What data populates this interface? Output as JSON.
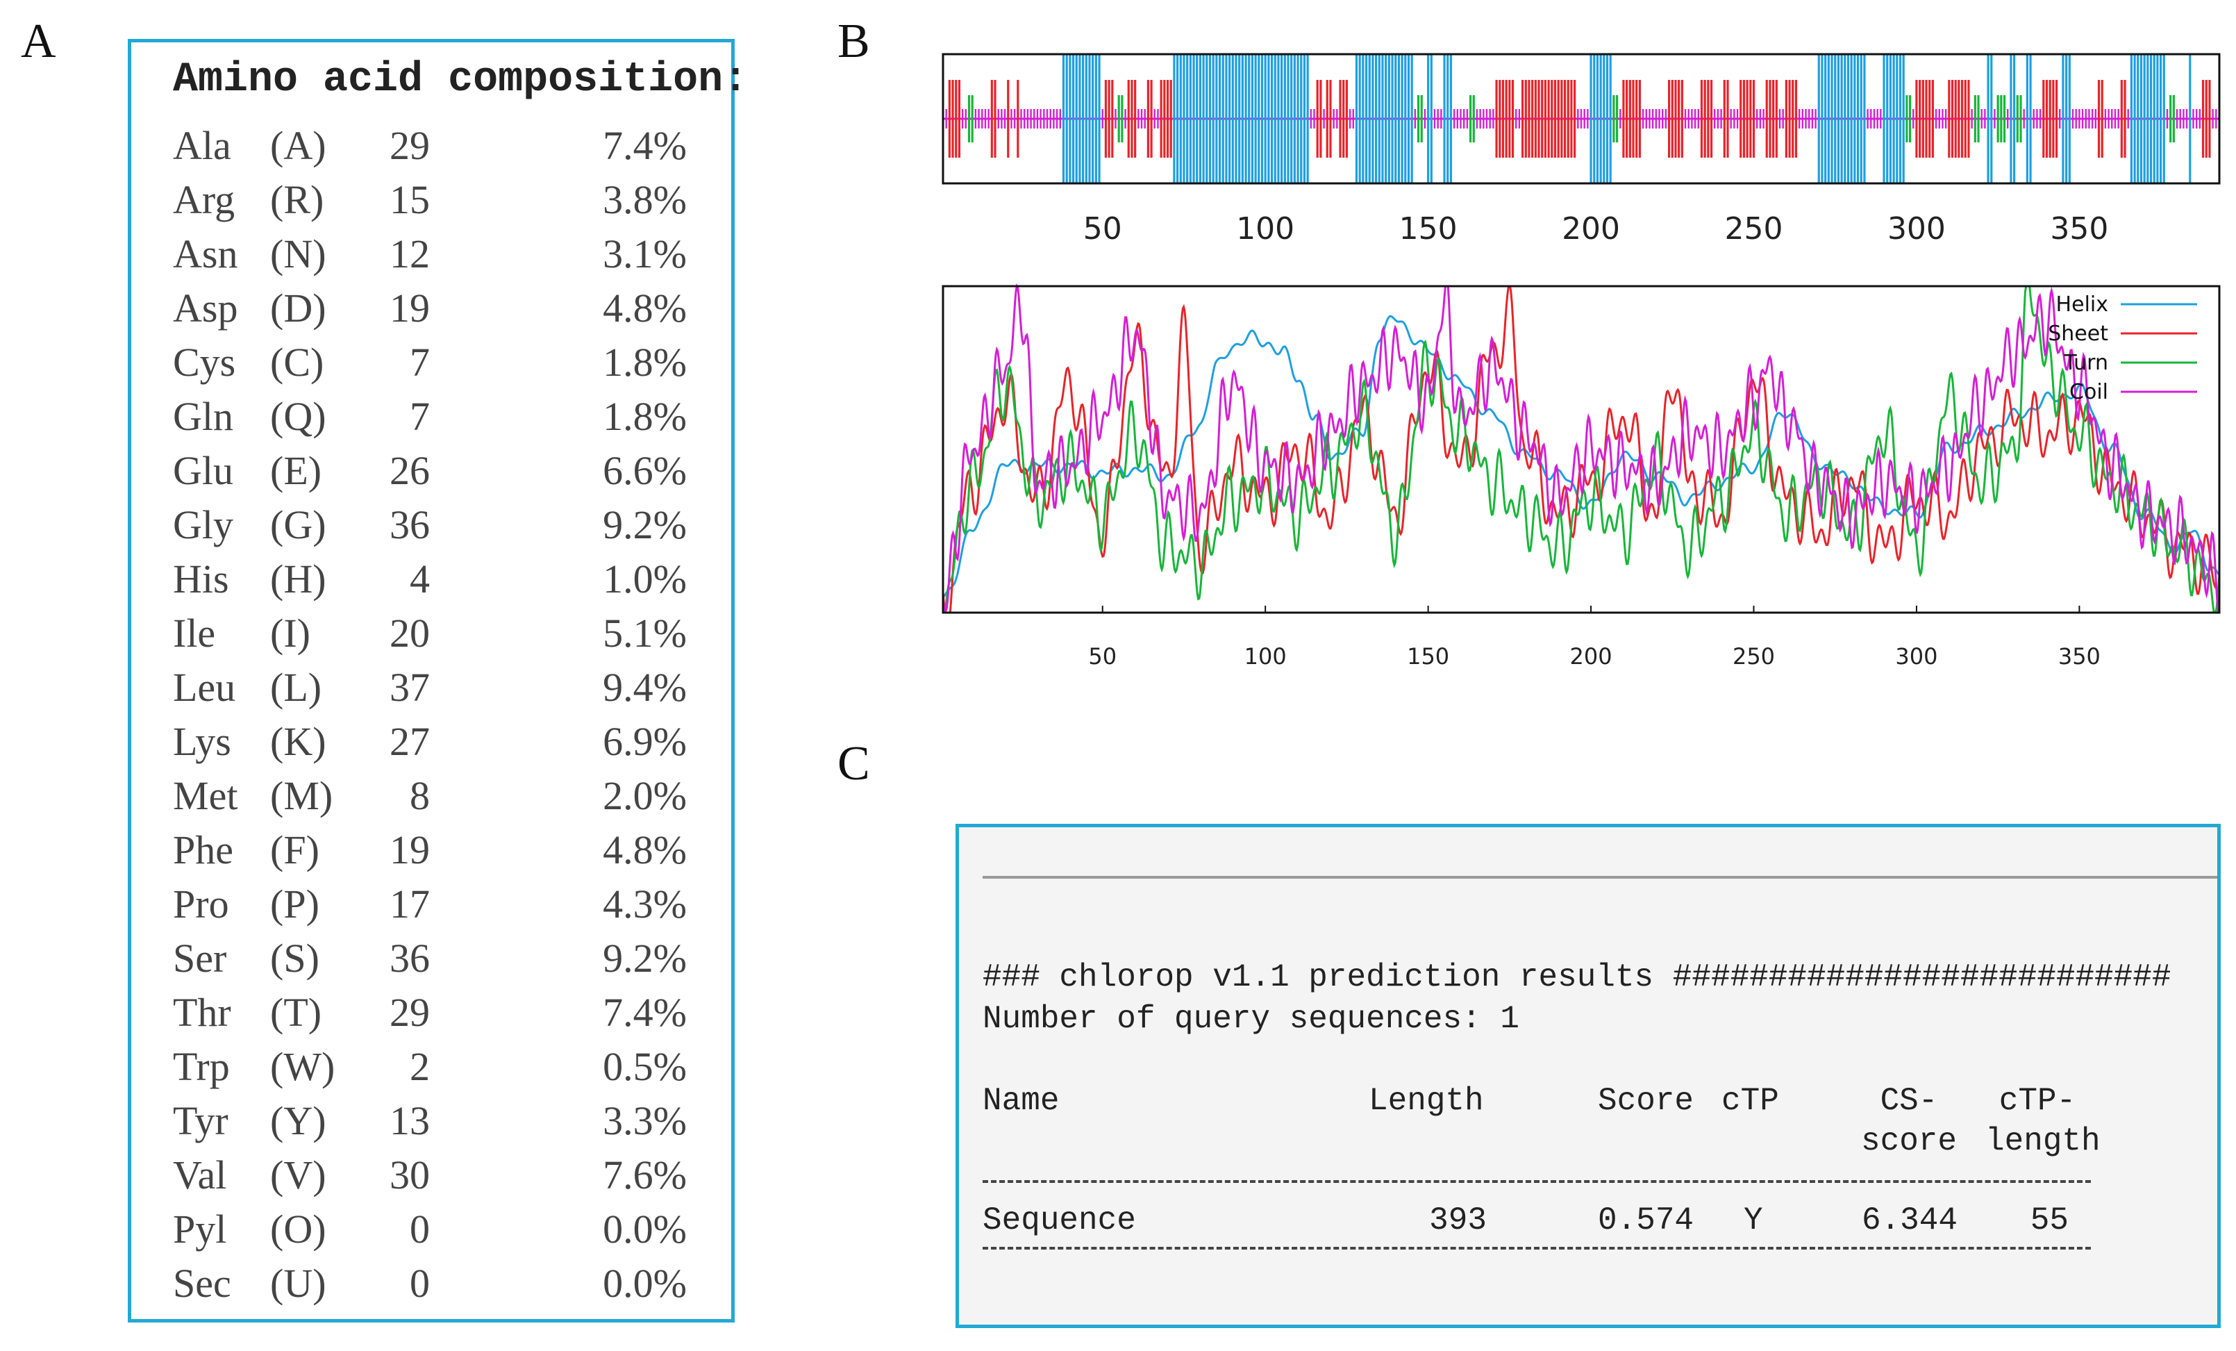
{
  "panel_labels": {
    "a": "A",
    "b": "B",
    "c": "C"
  },
  "amino": {
    "title": "Amino acid composition:",
    "rows": [
      {
        "name": "Ala",
        "code": "(A)",
        "count": "29",
        "pct": "7.4%"
      },
      {
        "name": "Arg",
        "code": "(R)",
        "count": "15",
        "pct": "3.8%"
      },
      {
        "name": "Asn",
        "code": "(N)",
        "count": "12",
        "pct": "3.1%"
      },
      {
        "name": "Asp",
        "code": "(D)",
        "count": "19",
        "pct": "4.8%"
      },
      {
        "name": "Cys",
        "code": "(C)",
        "count": "7",
        "pct": "1.8%"
      },
      {
        "name": "Gln",
        "code": "(Q)",
        "count": "7",
        "pct": "1.8%"
      },
      {
        "name": "Glu",
        "code": "(E)",
        "count": "26",
        "pct": "6.6%"
      },
      {
        "name": "Gly",
        "code": "(G)",
        "count": "36",
        "pct": "9.2%"
      },
      {
        "name": "His",
        "code": "(H)",
        "count": "4",
        "pct": "1.0%"
      },
      {
        "name": "Ile",
        "code": "(I)",
        "count": "20",
        "pct": "5.1%"
      },
      {
        "name": "Leu",
        "code": "(L)",
        "count": "37",
        "pct": "9.4%"
      },
      {
        "name": "Lys",
        "code": "(K)",
        "count": "27",
        "pct": "6.9%"
      },
      {
        "name": "Met",
        "code": "(M)",
        "count": "8",
        "pct": "2.0%"
      },
      {
        "name": "Phe",
        "code": "(F)",
        "count": "19",
        "pct": "4.8%"
      },
      {
        "name": "Pro",
        "code": "(P)",
        "count": "17",
        "pct": "4.3%"
      },
      {
        "name": "Ser",
        "code": "(S)",
        "count": "36",
        "pct": "9.2%"
      },
      {
        "name": "Thr",
        "code": "(T)",
        "count": "29",
        "pct": "7.4%"
      },
      {
        "name": "Trp",
        "code": "(W)",
        "count": "2",
        "pct": "0.5%"
      },
      {
        "name": "Tyr",
        "code": "(Y)",
        "count": "13",
        "pct": "3.3%"
      },
      {
        "name": "Val",
        "code": "(V)",
        "count": "30",
        "pct": "7.6%"
      },
      {
        "name": "Pyl",
        "code": "(O)",
        "count": "0",
        "pct": "0.0%"
      },
      {
        "name": "Sec",
        "code": "(U)",
        "count": "0",
        "pct": "0.0%"
      }
    ]
  },
  "colors": {
    "helix": "#1f9fe0",
    "sheet": "#e8232a",
    "turn": "#18b53a",
    "coil": "#d41fd4",
    "frame": "#22a9d3"
  },
  "chart_data": [
    {
      "type": "bar",
      "title": "",
      "description": "secondary structure track",
      "xlim": [
        1,
        393
      ],
      "xticks": [
        50,
        100,
        150,
        200,
        250,
        300,
        350
      ],
      "legend": [
        "Helix",
        "Sheet",
        "Turn",
        "Coil"
      ],
      "helix_ranges": [
        [
          38,
          49
        ],
        [
          72,
          113
        ],
        [
          128,
          145
        ],
        [
          150,
          151
        ],
        [
          155,
          157
        ],
        [
          200,
          206
        ],
        [
          270,
          284
        ],
        [
          290,
          296
        ],
        [
          322,
          323
        ],
        [
          329,
          330
        ],
        [
          334,
          335
        ],
        [
          345,
          347
        ],
        [
          366,
          376
        ],
        [
          384,
          384
        ]
      ],
      "sheet_ranges": [
        [
          3,
          6
        ],
        [
          16,
          17
        ],
        [
          21,
          21
        ],
        [
          24,
          24
        ],
        [
          51,
          53
        ],
        [
          58,
          60
        ],
        [
          64,
          65
        ],
        [
          68,
          71
        ],
        [
          116,
          117
        ],
        [
          119,
          120
        ],
        [
          123,
          125
        ],
        [
          171,
          176
        ],
        [
          179,
          195
        ],
        [
          210,
          215
        ],
        [
          224,
          228
        ],
        [
          234,
          237
        ],
        [
          241,
          242
        ],
        [
          246,
          250
        ],
        [
          254,
          257
        ],
        [
          260,
          263
        ],
        [
          300,
          305
        ],
        [
          310,
          316
        ],
        [
          339,
          343
        ],
        [
          356,
          357
        ],
        [
          363,
          364
        ],
        [
          388,
          390
        ]
      ],
      "turn_ranges": [
        [
          9,
          10
        ],
        [
          55,
          56
        ],
        [
          147,
          148
        ],
        [
          163,
          164
        ],
        [
          207,
          208
        ],
        [
          297,
          298
        ],
        [
          318,
          319
        ],
        [
          325,
          327
        ],
        [
          331,
          332
        ],
        [
          378,
          379
        ]
      ]
    },
    {
      "type": "line",
      "title": "",
      "xlim": [
        1,
        393
      ],
      "ylim": [
        0,
        1
      ],
      "xticks": [
        50,
        100,
        150,
        200,
        250,
        300,
        350
      ],
      "legend_position": "top-right",
      "series": [
        {
          "name": "Helix",
          "x": [
            1,
            10,
            20,
            30,
            40,
            50,
            60,
            70,
            80,
            85,
            90,
            95,
            100,
            105,
            110,
            115,
            120,
            130,
            135,
            140,
            150,
            160,
            170,
            180,
            190,
            200,
            210,
            220,
            230,
            240,
            250,
            260,
            270,
            280,
            290,
            300,
            310,
            320,
            330,
            340,
            350,
            360,
            370,
            380,
            385,
            390,
            393
          ],
          "y": [
            0.04,
            0.25,
            0.45,
            0.45,
            0.45,
            0.43,
            0.44,
            0.42,
            0.58,
            0.75,
            0.82,
            0.84,
            0.83,
            0.8,
            0.72,
            0.6,
            0.48,
            0.55,
            0.85,
            0.9,
            0.8,
            0.7,
            0.6,
            0.48,
            0.42,
            0.33,
            0.48,
            0.42,
            0.35,
            0.4,
            0.45,
            0.62,
            0.46,
            0.4,
            0.32,
            0.3,
            0.5,
            0.55,
            0.6,
            0.65,
            0.68,
            0.5,
            0.3,
            0.2,
            0.25,
            0.15,
            0.1
          ]
        },
        {
          "name": "Sheet",
          "x": [
            1,
            10,
            20,
            30,
            40,
            50,
            60,
            70,
            75,
            80,
            90,
            100,
            110,
            120,
            130,
            140,
            150,
            160,
            170,
            175,
            180,
            190,
            200,
            210,
            220,
            225,
            230,
            240,
            250,
            260,
            270,
            280,
            290,
            300,
            310,
            320,
            330,
            340,
            350,
            360,
            370,
            380,
            390,
            393
          ],
          "y": [
            0.03,
            0.4,
            0.65,
            0.35,
            0.7,
            0.25,
            0.8,
            0.4,
            0.85,
            0.2,
            0.45,
            0.35,
            0.5,
            0.3,
            0.6,
            0.3,
            0.75,
            0.45,
            0.8,
            0.9,
            0.5,
            0.3,
            0.4,
            0.6,
            0.3,
            0.75,
            0.4,
            0.3,
            0.7,
            0.35,
            0.25,
            0.4,
            0.2,
            0.35,
            0.3,
            0.5,
            0.6,
            0.55,
            0.6,
            0.4,
            0.3,
            0.2,
            0.15,
            0.05
          ]
        },
        {
          "name": "Turn",
          "x": [
            1,
            10,
            20,
            30,
            40,
            50,
            60,
            70,
            80,
            90,
            100,
            110,
            120,
            130,
            140,
            150,
            160,
            170,
            180,
            190,
            200,
            210,
            220,
            230,
            240,
            250,
            260,
            270,
            280,
            290,
            300,
            310,
            320,
            330,
            335,
            340,
            350,
            360,
            370,
            380,
            390,
            393
          ],
          "y": [
            0.03,
            0.4,
            0.7,
            0.35,
            0.45,
            0.3,
            0.55,
            0.2,
            0.15,
            0.35,
            0.4,
            0.3,
            0.45,
            0.6,
            0.25,
            0.75,
            0.55,
            0.4,
            0.3,
            0.2,
            0.35,
            0.25,
            0.45,
            0.2,
            0.35,
            0.55,
            0.3,
            0.4,
            0.25,
            0.55,
            0.2,
            0.65,
            0.4,
            0.5,
            1.0,
            0.75,
            0.55,
            0.4,
            0.3,
            0.2,
            0.1,
            0.05
          ]
        },
        {
          "name": "Coil",
          "x": [
            1,
            10,
            20,
            25,
            30,
            40,
            50,
            60,
            70,
            80,
            90,
            100,
            110,
            120,
            130,
            140,
            150,
            155,
            160,
            170,
            180,
            190,
            200,
            210,
            220,
            230,
            240,
            250,
            255,
            260,
            270,
            280,
            290,
            300,
            310,
            320,
            330,
            340,
            350,
            360,
            370,
            380,
            390,
            393
          ],
          "y": [
            0.04,
            0.5,
            0.75,
            0.95,
            0.4,
            0.45,
            0.6,
            0.85,
            0.35,
            0.3,
            0.7,
            0.45,
            0.4,
            0.55,
            0.7,
            0.8,
            0.65,
            0.95,
            0.6,
            0.75,
            0.55,
            0.35,
            0.5,
            0.45,
            0.4,
            0.55,
            0.5,
            0.65,
            0.75,
            0.6,
            0.4,
            0.3,
            0.4,
            0.35,
            0.45,
            0.65,
            0.8,
            0.9,
            0.7,
            0.45,
            0.3,
            0.25,
            0.15,
            0.08
          ]
        }
      ]
    }
  ],
  "chlorop": {
    "header": "### chlorop v1.1 prediction results ##########################",
    "nseq": "Number of query sequences: 1",
    "cols": {
      "name": "Name",
      "length": "Length",
      "score": "Score",
      "ctp": "cTP",
      "cs1": "CS-",
      "cs2": "score",
      "ctpl1": "cTP-",
      "ctpl2": "length"
    },
    "row": {
      "name": "Sequence",
      "length": "393",
      "score": "0.574",
      "ctp": "Y",
      "cs": "6.344",
      "ctpl": "55"
    }
  }
}
